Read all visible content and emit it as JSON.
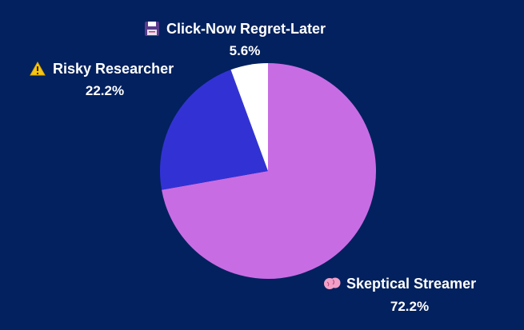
{
  "chart_data": {
    "type": "pie",
    "title": "",
    "start_angle_deg": 0,
    "direction": "clockwise",
    "slices": [
      {
        "label": "Skeptical Streamer",
        "value": 72.2,
        "value_label": "72.2%",
        "color": "#c86ce4",
        "icon": "brain-icon"
      },
      {
        "label": "Risky Researcher",
        "value": 22.2,
        "value_label": "22.2%",
        "color": "#3232d4",
        "icon": "warning-icon"
      },
      {
        "label": "Click-Now Regret-Later",
        "value": 5.6,
        "value_label": "5.6%",
        "color": "#ffffff",
        "icon": "floppy-disk-icon"
      }
    ]
  },
  "colors": {
    "background": "#03215e",
    "text": "#ffffff"
  }
}
